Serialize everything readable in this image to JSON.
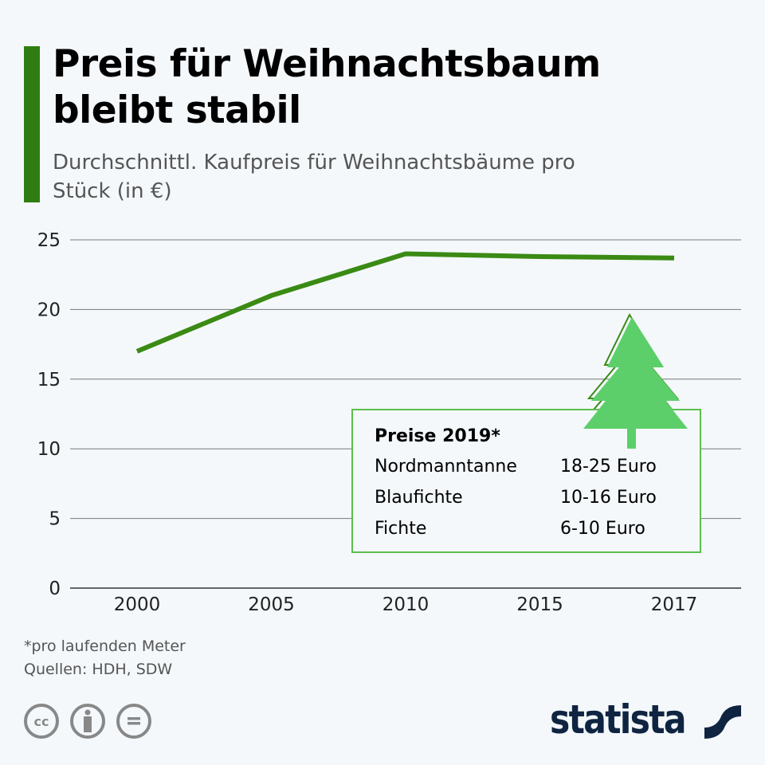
{
  "header": {
    "title": "Preis für Weihnachtsbaum bleibt stabil",
    "subtitle": "Durchschnittl. Kaufpreis für Weihnachtsbäume pro Stück (in €)"
  },
  "chart_data": {
    "type": "line",
    "title": "Preis für Weihnachtsbaum bleibt stabil",
    "subtitle": "Durchschnittl. Kaufpreis für Weihnachtsbäume pro Stück (in €)",
    "categories": [
      "2000",
      "2005",
      "2010",
      "2015",
      "2017"
    ],
    "series": [
      {
        "name": "Kaufpreis",
        "values": [
          17,
          21,
          24,
          23.8,
          23.7
        ],
        "color": "#3a8a14"
      }
    ],
    "yticks": [
      0,
      5,
      10,
      15,
      20,
      25
    ],
    "ylim": [
      0,
      25
    ],
    "grid": true,
    "xlabel": "",
    "ylabel": ""
  },
  "infobox": {
    "title": "Preise 2019*",
    "rows": [
      {
        "name": "Nordmanntanne",
        "price": "18-25 Euro"
      },
      {
        "name": "Blaufichte",
        "price": "10-16 Euro"
      },
      {
        "name": "Fichte",
        "price": "6-10 Euro"
      }
    ],
    "icon": "christmas-tree-icon",
    "color": "#5ccf6a"
  },
  "footer": {
    "note": "*pro laufenden Meter",
    "source": "Quellen: HDH, SDW",
    "brand": "statista",
    "license_icons": [
      "cc-icon",
      "by-icon",
      "nd-icon"
    ]
  }
}
